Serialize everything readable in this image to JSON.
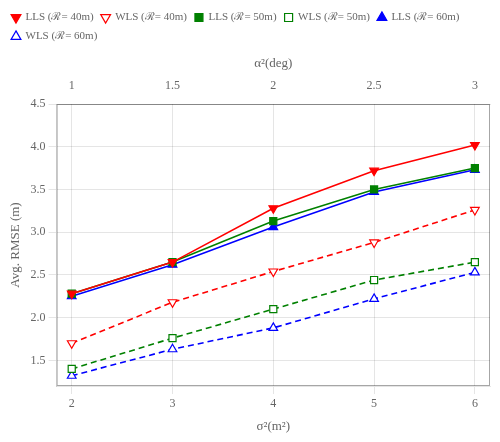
{
  "chart_data": {
    "type": "line",
    "x": [
      2,
      3,
      4,
      5,
      6
    ],
    "series": [
      {
        "name": "LLS (ℛ= 40m)",
        "color": "#ff0000",
        "marker": "triangle_down",
        "line_style": "solid",
        "fill_marker": true,
        "values": [
          2.28,
          2.65,
          3.28,
          3.72,
          4.02
        ]
      },
      {
        "name": "WLS (ℛ= 40m)",
        "color": "#ff0000",
        "marker": "triangle_down",
        "line_style": "dashed",
        "fill_marker": false,
        "values": [
          1.7,
          2.18,
          2.54,
          2.88,
          3.26
        ]
      },
      {
        "name": "LLS (ℛ= 50m)",
        "color": "#008000",
        "marker": "square",
        "line_style": "solid",
        "fill_marker": true,
        "values": [
          2.28,
          2.65,
          3.13,
          3.5,
          3.75
        ]
      },
      {
        "name": "WLS (ℛ= 50m)",
        "color": "#008000",
        "marker": "square",
        "line_style": "dashed",
        "fill_marker": false,
        "values": [
          1.4,
          1.76,
          2.1,
          2.44,
          2.65
        ]
      },
      {
        "name": "LLS (ℛ= 60m)",
        "color": "#0000ff",
        "marker": "triangle_up",
        "line_style": "solid",
        "fill_marker": true,
        "values": [
          2.25,
          2.62,
          3.06,
          3.47,
          3.73
        ]
      },
      {
        "name": "WLS (ℛ= 60m)",
        "color": "#0000ff",
        "marker": "triangle_up",
        "line_style": "dashed",
        "fill_marker": false,
        "values": [
          1.32,
          1.63,
          1.88,
          2.22,
          2.53
        ]
      }
    ],
    "xlabel": "σ²(m²)",
    "ylabel": "Avg. RMSE (m)",
    "x2label": "α²(deg)",
    "xlim": [
      1.85,
      6.15
    ],
    "xticks": [
      2,
      3,
      4,
      5,
      6
    ],
    "x2lim": [
      0.925,
      3.075
    ],
    "x2ticks": [
      1,
      1.5,
      2,
      2.5,
      3
    ],
    "ylim": [
      1.2,
      4.5
    ],
    "yticks": [
      1.5,
      {
        "value": 2.0,
        "label": "2.0"
      },
      2.5,
      {
        "value": 3.0,
        "label": "3.0"
      },
      3.5,
      {
        "value": 4.0,
        "label": "4.0"
      },
      4.5
    ],
    "grid": true,
    "legend": "upper left"
  }
}
